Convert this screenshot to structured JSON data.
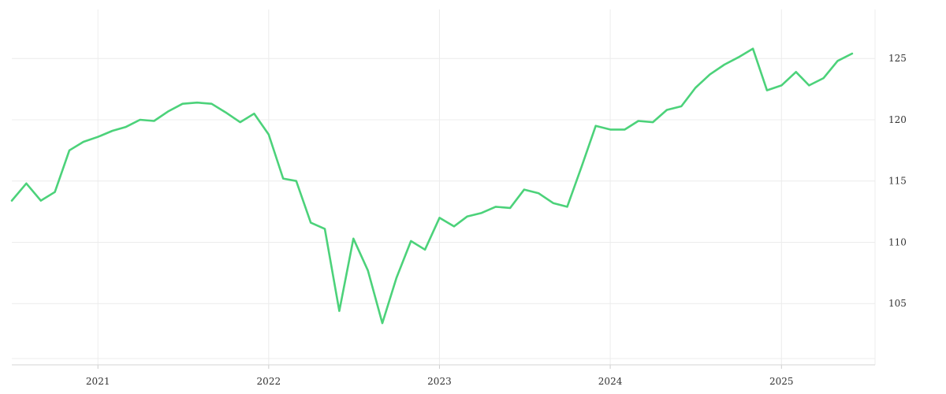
{
  "chart_data": {
    "type": "line",
    "title": "",
    "xlabel": "",
    "ylabel": "",
    "x_ticks": [
      "2021",
      "2022",
      "2023",
      "2024",
      "2025"
    ],
    "y_ticks": [
      "105",
      "110",
      "115",
      "120",
      "125"
    ],
    "xlim": [
      "2020-07-01",
      "2025-07-20"
    ],
    "ylim": [
      100,
      129
    ],
    "grid": true,
    "legend": "none",
    "series": [
      {
        "color": "#4cd27a",
        "points": [
          [
            "2020-07-01",
            113.4
          ],
          [
            "2020-08-01",
            114.8
          ],
          [
            "2020-09-01",
            113.4
          ],
          [
            "2020-10-01",
            114.1
          ],
          [
            "2020-11-01",
            117.5
          ],
          [
            "2020-12-01",
            118.2
          ],
          [
            "2021-01-01",
            118.6
          ],
          [
            "2021-02-01",
            119.1
          ],
          [
            "2021-03-01",
            119.4
          ],
          [
            "2021-04-01",
            120.0
          ],
          [
            "2021-05-01",
            119.9
          ],
          [
            "2021-06-01",
            120.7
          ],
          [
            "2021-07-01",
            121.3
          ],
          [
            "2021-08-01",
            121.4
          ],
          [
            "2021-09-01",
            121.3
          ],
          [
            "2021-10-01",
            120.6
          ],
          [
            "2021-11-01",
            119.8
          ],
          [
            "2021-12-01",
            120.5
          ],
          [
            "2022-01-01",
            118.8
          ],
          [
            "2022-02-01",
            115.2
          ],
          [
            "2022-03-01",
            115.0
          ],
          [
            "2022-04-01",
            111.6
          ],
          [
            "2022-05-01",
            111.1
          ],
          [
            "2022-06-01",
            104.4
          ],
          [
            "2022-07-01",
            110.3
          ],
          [
            "2022-08-01",
            107.7
          ],
          [
            "2022-09-01",
            103.4
          ],
          [
            "2022-10-01",
            107.1
          ],
          [
            "2022-11-01",
            110.1
          ],
          [
            "2022-12-01",
            109.4
          ],
          [
            "2023-01-01",
            112.0
          ],
          [
            "2023-02-01",
            111.3
          ],
          [
            "2023-03-01",
            112.1
          ],
          [
            "2023-04-01",
            112.4
          ],
          [
            "2023-05-01",
            112.9
          ],
          [
            "2023-06-01",
            112.8
          ],
          [
            "2023-07-01",
            114.3
          ],
          [
            "2023-08-01",
            114.0
          ],
          [
            "2023-09-01",
            113.2
          ],
          [
            "2023-10-01",
            112.9
          ],
          [
            "2023-11-01",
            116.2
          ],
          [
            "2023-12-01",
            119.5
          ],
          [
            "2024-01-01",
            119.2
          ],
          [
            "2024-02-01",
            119.2
          ],
          [
            "2024-03-01",
            119.9
          ],
          [
            "2024-04-01",
            119.8
          ],
          [
            "2024-05-01",
            120.8
          ],
          [
            "2024-06-01",
            121.1
          ],
          [
            "2024-07-01",
            122.6
          ],
          [
            "2024-08-01",
            123.7
          ],
          [
            "2024-09-01",
            124.5
          ],
          [
            "2024-10-01",
            125.1
          ],
          [
            "2024-11-01",
            125.8
          ],
          [
            "2024-12-01",
            122.4
          ],
          [
            "2025-01-01",
            122.8
          ],
          [
            "2025-02-01",
            123.9
          ],
          [
            "2025-03-01",
            122.8
          ],
          [
            "2025-04-01",
            123.4
          ],
          [
            "2025-05-01",
            124.8
          ],
          [
            "2025-06-01",
            125.4
          ]
        ]
      }
    ]
  }
}
